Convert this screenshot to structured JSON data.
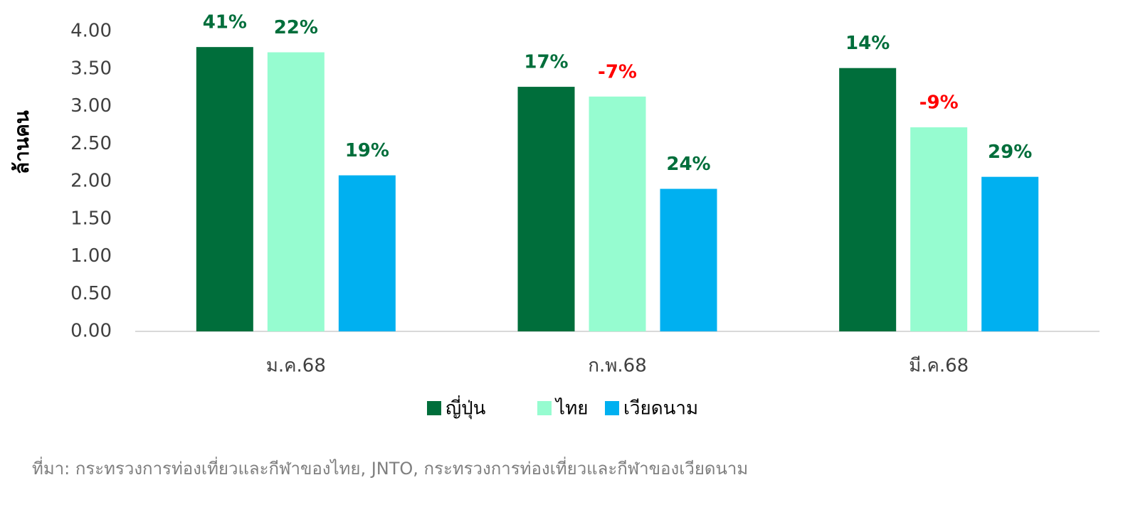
{
  "chart_data": {
    "type": "bar",
    "y_label": "ล้านคน",
    "categories": [
      "ม.ค.68",
      "ก.พ.68",
      "มี.ค.68"
    ],
    "series": [
      {
        "name": "ญี่ปุ่น",
        "color": "#006e3b",
        "values": [
          3.79,
          3.26,
          3.51
        ],
        "data_labels": [
          "41%",
          "17%",
          "14%"
        ],
        "data_label_colors": [
          "#006e3b",
          "#006e3b",
          "#006e3b"
        ]
      },
      {
        "name": "ไทย",
        "color": "#96fcd0",
        "values": [
          3.72,
          3.13,
          2.72
        ],
        "data_labels": [
          "22%",
          "-7%",
          "-9%"
        ],
        "data_label_colors": [
          "#006e3b",
          "#ff0000",
          "#ff0000"
        ]
      },
      {
        "name": "เวียดนาม",
        "color": "#00b0f0",
        "values": [
          2.08,
          1.9,
          2.06
        ],
        "data_labels": [
          "19%",
          "24%",
          "29%"
        ],
        "data_label_colors": [
          "#006e3b",
          "#006e3b",
          "#006e3b"
        ]
      }
    ],
    "ylim": [
      0,
      4
    ],
    "yticks": [
      {
        "value": 0,
        "label": "0.00"
      },
      {
        "value": 0.5,
        "label": "0.50"
      },
      {
        "value": 1,
        "label": "1.00"
      },
      {
        "value": 1.5,
        "label": "1.50"
      },
      {
        "value": 2,
        "label": "2.00"
      },
      {
        "value": 2.5,
        "label": "2.50"
      },
      {
        "value": 3,
        "label": "3.00"
      },
      {
        "value": 3.5,
        "label": "3.50"
      },
      {
        "value": 4,
        "label": "4.00"
      }
    ],
    "grid": false,
    "legend": "bottom",
    "source": "ที่มา: กระทรวงการท่องเที่ยวและกีฬาของไทย, JNTO, กระทรวงการท่องเที่ยวและกีฬาของเวียดนาม"
  }
}
